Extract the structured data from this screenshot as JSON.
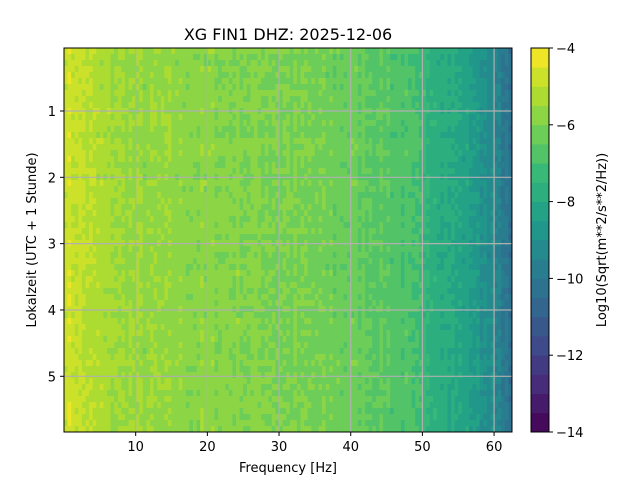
{
  "chart_data": {
    "type": "heatmap",
    "title": "XG FIN1  DHZ: 2025-12-06",
    "xlabel": "Frequency [Hz]",
    "ylabel": "Lokalzeit (UTC + 1 Stunde)",
    "xlim": [
      0,
      62.5
    ],
    "ylim": [
      5.84,
      0.05
    ],
    "xticks": [
      10,
      20,
      30,
      40,
      50,
      60
    ],
    "yticks": [
      1,
      2,
      3,
      4,
      5
    ],
    "grid": true,
    "colorbar": {
      "label": "Log10(Sqrt(m**2/s**2/Hz))",
      "range": [
        -14,
        -4
      ],
      "ticks": [
        -4,
        -6,
        -8,
        -10,
        -12,
        -14
      ],
      "levels": 20,
      "colormap": "viridis"
    },
    "mean_level_profile": {
      "frequency_hz": [
        0,
        2,
        5,
        10,
        20,
        30,
        40,
        45,
        48,
        50,
        53,
        56,
        59,
        61,
        62.5
      ],
      "log10_amplitude": [
        -4.6,
        -4.9,
        -5.3,
        -5.6,
        -5.8,
        -6.0,
        -6.3,
        -6.6,
        -6.9,
        -7.3,
        -7.8,
        -8.3,
        -9.0,
        -9.7,
        -10.4
      ]
    }
  }
}
